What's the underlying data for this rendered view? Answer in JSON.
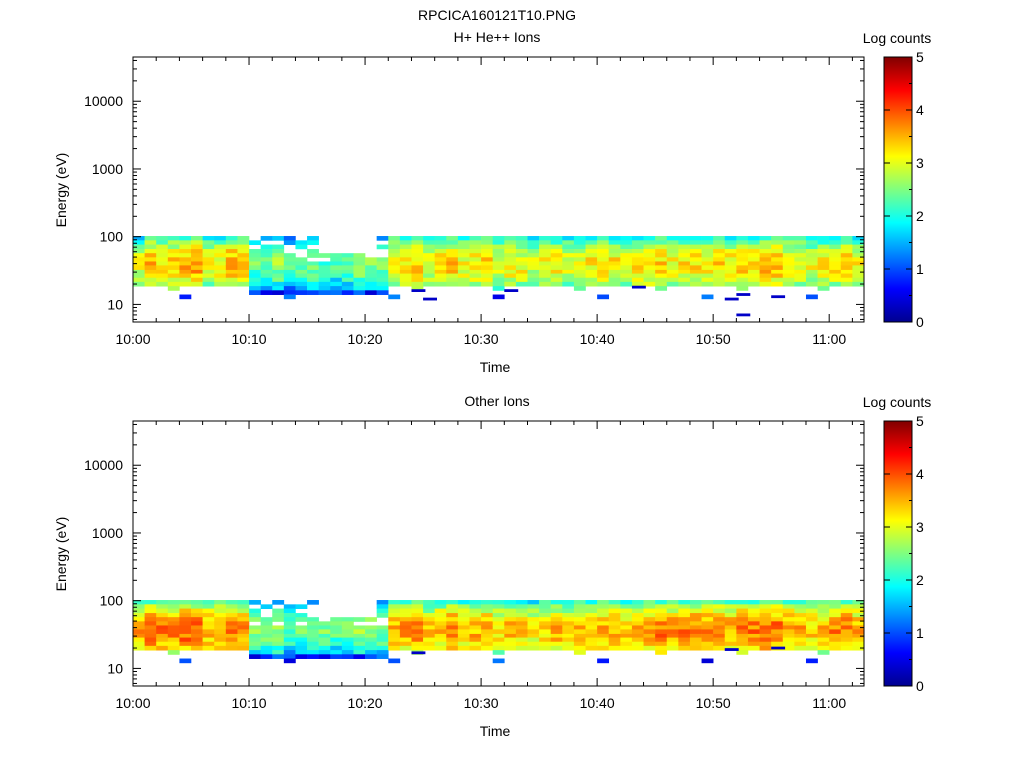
{
  "figure": {
    "title": "RPCICA160121T10.PNG"
  },
  "chart_data": [
    {
      "type": "heatmap",
      "title": "H+ He++ Ions",
      "xlabel": "Time",
      "ylabel": "Energy (eV)",
      "x_ticks": [
        "10:00",
        "10:10",
        "10:20",
        "10:30",
        "10:40",
        "10:50",
        "11:00"
      ],
      "xlim": [
        "10:00",
        "11:03"
      ],
      "y_scale": "log",
      "y_ticks": [
        "10",
        "100",
        "1000",
        "10000"
      ],
      "ylim": [
        5.5,
        45000
      ],
      "colorbar": {
        "label": "Log counts",
        "ticks": [
          "0",
          "1",
          "2",
          "3",
          "4",
          "5"
        ],
        "range": [
          0,
          5
        ],
        "colormap": "jet"
      },
      "time_bins_per_minute": 1,
      "energy_bins": [
        95,
        82,
        71,
        61,
        53,
        46,
        40,
        35,
        30,
        26.5,
        23,
        20,
        17.3,
        15,
        13
      ],
      "column_peak_log_counts": [
        3.0,
        3.4,
        3.2,
        3.3,
        3.5,
        3.6,
        3.1,
        3.2,
        3.5,
        3.4,
        2.4,
        2.3,
        2.6,
        2.2,
        2.4,
        2.5,
        2.3,
        2.2,
        2.4,
        2.6,
        2.5,
        2.4,
        3.3,
        3.3,
        3.4,
        3.0,
        3.2,
        3.4,
        3.1,
        3.2,
        3.3,
        3.0,
        3.2,
        3.1,
        2.9,
        3.1,
        3.2,
        3.0,
        3.1,
        3.2,
        3.3,
        3.2,
        3.1,
        3.2,
        3.3,
        3.3,
        3.1,
        3.2,
        3.3,
        3.2,
        3.3,
        3.2,
        3.3,
        3.3,
        3.5,
        3.4,
        3.2,
        3.2,
        3.0,
        3.1,
        3.2,
        3.3,
        3.1
      ],
      "sparse_blue_pixels": [
        [
          24,
          16
        ],
        [
          25,
          12
        ],
        [
          32,
          16
        ],
        [
          43,
          18
        ],
        [
          51,
          12
        ],
        [
          52,
          14
        ],
        [
          52,
          7
        ],
        [
          55,
          13
        ]
      ]
    },
    {
      "type": "heatmap",
      "title": "Other Ions",
      "xlabel": "Time",
      "ylabel": "Energy (eV)",
      "x_ticks": [
        "10:00",
        "10:10",
        "10:20",
        "10:30",
        "10:40",
        "10:50",
        "11:00"
      ],
      "xlim": [
        "10:00",
        "11:03"
      ],
      "y_scale": "log",
      "y_ticks": [
        "10",
        "100",
        "1000",
        "10000"
      ],
      "ylim": [
        5.5,
        45000
      ],
      "colorbar": {
        "label": "Log counts",
        "ticks": [
          "0",
          "1",
          "2",
          "3",
          "4",
          "5"
        ],
        "range": [
          0,
          5
        ],
        "colormap": "jet"
      },
      "time_bins_per_minute": 1,
      "energy_bins": [
        95,
        82,
        71,
        61,
        53,
        46,
        40,
        35,
        30,
        26.5,
        23,
        20,
        17.3,
        15,
        13
      ],
      "column_peak_log_counts": [
        3.6,
        3.9,
        3.8,
        3.7,
        3.9,
        3.8,
        3.5,
        3.6,
        3.8,
        3.7,
        2.5,
        2.4,
        2.7,
        2.3,
        2.4,
        2.5,
        2.4,
        2.3,
        2.4,
        2.6,
        2.6,
        2.5,
        3.6,
        3.6,
        3.7,
        3.3,
        3.5,
        3.7,
        3.4,
        3.5,
        3.6,
        3.3,
        3.5,
        3.4,
        3.2,
        3.4,
        3.5,
        3.3,
        3.4,
        3.5,
        3.6,
        3.5,
        3.4,
        3.5,
        3.6,
        3.8,
        3.6,
        3.7,
        3.8,
        3.6,
        3.7,
        3.6,
        3.7,
        3.8,
        3.9,
        3.8,
        3.6,
        3.5,
        3.4,
        3.5,
        3.7,
        3.8,
        3.5
      ],
      "sparse_blue_pixels": [
        [
          24,
          17
        ],
        [
          51,
          19
        ],
        [
          55,
          20
        ]
      ]
    }
  ]
}
